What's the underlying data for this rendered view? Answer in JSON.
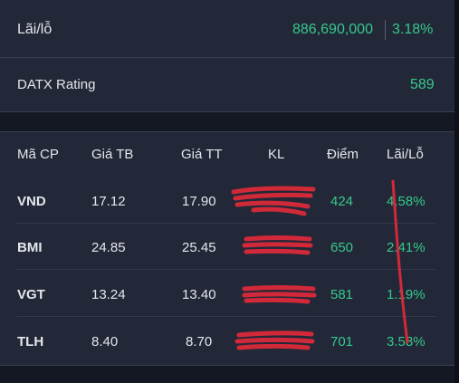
{
  "summary": {
    "pnl_label": "Lãi/lỗ",
    "pnl_value": "886,690,000",
    "pnl_percent": "3.18%",
    "rating_label": "DATX Rating",
    "rating_value": "589"
  },
  "table": {
    "headers": {
      "symbol": "Mã CP",
      "avg_price": "Giá TB",
      "market_price": "Giá TT",
      "volume": "KL",
      "score": "Điểm",
      "pnl": "Lãi/Lỗ"
    },
    "rows": [
      {
        "symbol": "VND",
        "avg_price": "17.12",
        "market_price": "17.90",
        "score": "424",
        "pnl": "4.58%"
      },
      {
        "symbol": "BMI",
        "avg_price": "24.85",
        "market_price": "25.45",
        "score": "650",
        "pnl": "2.41%"
      },
      {
        "symbol": "VGT",
        "avg_price": "13.24",
        "market_price": "13.40",
        "score": "581",
        "pnl": "1.19%"
      },
      {
        "symbol": "TLH",
        "avg_price": "8.40",
        "market_price": "8.70",
        "score": "701",
        "pnl": "3.58%"
      }
    ]
  },
  "colors": {
    "background": "#141823",
    "card": "#232838",
    "positive": "#35c98a",
    "redaction": "#e02a3a"
  }
}
